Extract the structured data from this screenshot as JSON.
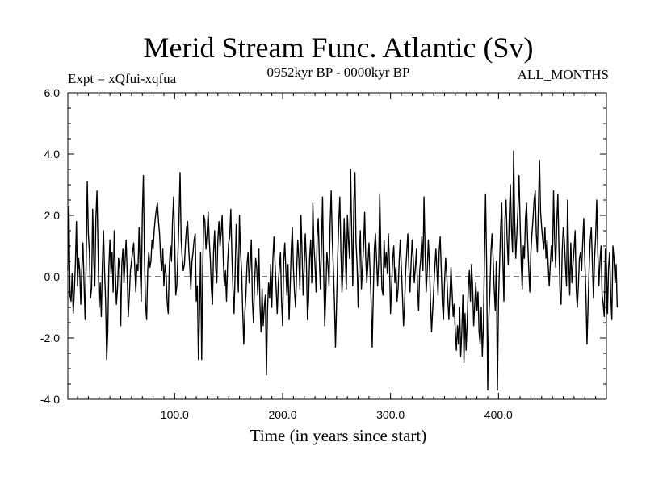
{
  "chart_data": {
    "type": "line",
    "title": "Merid Stream Func. Atlantic (Sv)",
    "subtitle": "0952kyr BP - 0000kyr BP",
    "expt_label": "Expt = xQfui-xqfua",
    "months_label": "ALL_MONTHS",
    "xlabel": "Time (in years since start)",
    "ylabel": "",
    "xlim": [
      1,
      500
    ],
    "ylim": [
      -4,
      6
    ],
    "xticks": [
      100,
      200,
      300,
      400
    ],
    "xtick_labels": [
      "100.0",
      "200.0",
      "300.0",
      "400.0"
    ],
    "yticks": [
      -4,
      -2,
      0,
      2,
      4,
      6
    ],
    "ytick_labels": [
      "-4.0",
      "-2.0",
      "0.0",
      "2.0",
      "4.0",
      "6.0"
    ],
    "reference_line": 0,
    "series": [
      {
        "name": "xQfui-xqfua",
        "x_start": 1,
        "x_step": 1,
        "values": [
          0.2,
          2.3,
          -0.6,
          -0.8,
          0.1,
          -1.2,
          -0.5,
          0.4,
          1.8,
          -0.3,
          0.6,
          0.2,
          -0.9,
          0.3,
          1.1,
          -0.2,
          -1.4,
          0.5,
          3.1,
          1.4,
          0.8,
          -0.7,
          -0.4,
          2.2,
          0.6,
          -0.3,
          1.9,
          2.8,
          0.9,
          -1.0,
          -0.2,
          -1.3,
          0.4,
          1.5,
          0.2,
          -0.8,
          -2.7,
          -1.8,
          0.3,
          1.2,
          0.1,
          0.8,
          -0.5,
          1.5,
          0.2,
          -0.9,
          -0.4,
          0.6,
          0.3,
          -1.6,
          0.4,
          0.9,
          -0.2,
          0.5,
          1.2,
          0.1,
          -1.3,
          -0.6,
          0.2,
          0.5,
          0.8,
          1.1,
          0.3,
          -0.5,
          0.4,
          0.2,
          1.6,
          0.3,
          -0.8,
          2.0,
          3.3,
          0.6,
          -0.9,
          -1.4,
          0.2,
          0.8,
          0.3,
          0.5,
          1.2,
          0.9,
          1.5,
          1.9,
          2.2,
          2.4,
          1.8,
          1.4,
          0.6,
          0.2,
          0.9,
          -0.3,
          0.4,
          0.1,
          -0.8,
          -1.2,
          0.3,
          1.0,
          0.5,
          1.8,
          2.6,
          1.1,
          -0.6,
          -0.3,
          0.7,
          1.9,
          3.4,
          1.2,
          0.6,
          0.2,
          0.4,
          1.1,
          1.6,
          1.8,
          0.9,
          0.3,
          -0.4,
          0.5,
          0.8,
          1.2,
          1.4,
          -0.8,
          -0.3,
          -2.7,
          -1.2,
          0.8,
          -2.7,
          0.3,
          2.0,
          1.8,
          0.9,
          1.4,
          2.1,
          1.2,
          0.6,
          -0.4,
          -0.9,
          0.8,
          1.5,
          0.3,
          -0.2,
          1.2,
          1.8,
          1.0,
          1.4,
          2.0,
          0.6,
          -0.3,
          0.2,
          -0.8,
          0.4,
          1.1,
          1.3,
          2.2,
          0.7,
          -0.4,
          -1.2,
          0.1,
          1.7,
          0.6,
          -0.5,
          2.0,
          0.8,
          0.2,
          -1.1,
          -2.2,
          -1.2,
          -0.6,
          0.4,
          0.8,
          -0.2,
          0.4,
          1.2,
          -0.8,
          -1.5,
          -0.2,
          0.6,
          0.3,
          -0.6,
          0.9,
          -0.9,
          -1.8,
          -0.4,
          -1.6,
          -1.0,
          -0.6,
          -3.2,
          -1.1,
          -0.2,
          -0.7,
          0.4,
          -1.0,
          0.6,
          1.3,
          0.4,
          -0.4,
          -1.2,
          -0.2,
          0.3,
          0.8,
          -0.8,
          -1.6,
          0.5,
          1.1,
          0.2,
          -0.6,
          0.4,
          -1.4,
          -0.3,
          0.9,
          1.6,
          0.3,
          -0.5,
          -1.0,
          0.2,
          1.2,
          0.6,
          -0.4,
          2.0,
          0.8,
          -0.6,
          0.3,
          1.4,
          0.5,
          -1.4,
          -0.8,
          0.6,
          1.2,
          -0.2,
          2.4,
          1.0,
          0.4,
          -0.5,
          1.3,
          1.9,
          0.6,
          -0.4,
          1.0,
          2.6,
          0.2,
          -1.6,
          -0.6,
          0.8,
          0.4,
          -0.3,
          1.7,
          2.8,
          1.2,
          0.3,
          -0.8,
          -2.3,
          -0.9,
          0.6,
          1.8,
          2.6,
          0.8,
          -0.5,
          0.3,
          1.9,
          0.8,
          -0.4,
          2.0,
          1.2,
          0.6,
          3.5,
          1.4,
          -0.3,
          2.4,
          3.4,
          1.1,
          0.4,
          -1.0,
          0.6,
          1.5,
          -0.4,
          0.3,
          1.0,
          2.1,
          0.6,
          -0.2,
          0.4,
          1.1,
          0.2,
          -0.8,
          -2.3,
          -0.6,
          0.9,
          1.4,
          0.6,
          -0.3,
          0.5,
          2.7,
          0.8,
          -0.4,
          -0.6,
          1.2,
          0.3,
          0.8,
          0.1,
          1.4,
          0.4,
          -1.2,
          -0.3,
          0.6,
          1.0,
          -0.2,
          0.3,
          -0.8,
          -0.4,
          0.5,
          1.2,
          0.3,
          -0.6,
          -1.6,
          -0.9,
          0.2,
          0.8,
          1.4,
          0.3,
          -0.5,
          0.4,
          1.2,
          0.6,
          -0.2,
          0.3,
          0.9,
          -0.4,
          -1.1,
          0.2,
          0.6,
          1.3,
          0.2,
          2.6,
          0.8,
          -0.5,
          0.2,
          1.2,
          0.4,
          -0.8,
          -1.8,
          -1.1,
          -0.4,
          0.3,
          0.9,
          0.2,
          -0.6,
          0.8,
          1.3,
          0.2,
          -0.9,
          -1.4,
          -0.2,
          0.6,
          0.1,
          -0.7,
          -1.4,
          -0.6,
          0.3,
          -0.5,
          -1.3,
          -0.9,
          -1.8,
          -2.4,
          -1.6,
          -2.2,
          -1.0,
          -2.6,
          -1.8,
          -0.6,
          -2.8,
          -1.2,
          -2.4,
          -1.5,
          -0.4,
          0.2,
          -0.8,
          0.4,
          -0.3,
          -1.6,
          -0.9,
          -0.2,
          -1.1,
          -0.5,
          -1.8,
          -2.2,
          -1.0,
          -2.6,
          -1.6,
          0.6,
          2.7,
          0.4,
          -3.7,
          -1.4,
          -0.5,
          0.8,
          1.4,
          0.6,
          -0.4,
          -1.1,
          0.5,
          -3.7,
          -0.8,
          0.4,
          1.6,
          2.4,
          0.6,
          -0.8,
          1.9,
          2.5,
          1.2,
          0.4,
          2.0,
          3.0,
          1.6,
          0.8,
          4.1,
          1.8,
          0.6,
          1.4,
          2.2,
          3.3,
          1.8,
          0.5,
          -0.4,
          1.0,
          0.6,
          1.9,
          2.4,
          1.2,
          0.3,
          -0.5,
          0.8,
          1.4,
          1.9,
          2.5,
          2.8,
          1.4,
          0.8,
          2.3,
          3.8,
          2.1,
          1.6,
          1.2,
          0.9,
          1.6,
          0.6,
          1.2,
          0.4,
          -0.3,
          0.4,
          1.0,
          0.5,
          2.8,
          1.2,
          0.3,
          1.8,
          2.7,
          0.9,
          -0.5,
          -0.9,
          0.8,
          1.6,
          1.2,
          0.4,
          -0.3,
          2.5,
          0.6,
          -0.6,
          1.1,
          -0.2,
          0.4,
          0.9,
          1.5,
          -0.4,
          -1.0,
          -0.3,
          0.6,
          0.8,
          0.2,
          1.1,
          1.9,
          0.5,
          -0.6,
          -2.2,
          -0.9,
          0.3,
          1.2,
          1.6,
          0.4,
          -0.7,
          0.6,
          1.3,
          2.5,
          0.8,
          -0.3,
          0.5,
          1.0,
          -0.6,
          -0.9,
          -1.3,
          0.9,
          0.4,
          -1.2,
          0.3,
          0.8,
          -0.6,
          -1.4,
          1.0,
          0.6,
          -0.2,
          0.4,
          -1.0
        ]
      }
    ]
  }
}
